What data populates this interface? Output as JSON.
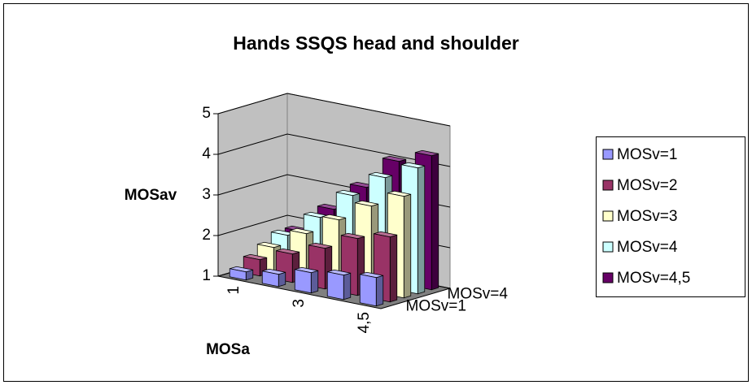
{
  "chart_data": {
    "type": "bar3d",
    "title": "Hands SSQS head and shoulder",
    "y_label": "MOSav",
    "x_label": "MOSa",
    "categories": [
      "1",
      null,
      "3",
      null,
      "4,5"
    ],
    "zlabels": [
      "MOSv=1",
      null,
      null,
      "MOSv=4",
      null
    ],
    "series": [
      {
        "name": "MOSv=1",
        "color": "#9999ff",
        "values": [
          1.2,
          1.3,
          1.5,
          1.6,
          1.7
        ]
      },
      {
        "name": "MOSv=2",
        "color": "#993366",
        "values": [
          1.4,
          1.7,
          2.0,
          2.4,
          2.6
        ]
      },
      {
        "name": "MOSv=3",
        "color": "#ffffcc",
        "values": [
          1.6,
          2.1,
          2.6,
          3.1,
          3.5
        ]
      },
      {
        "name": "MOSv=4",
        "color": "#ccffff",
        "values": [
          1.8,
          2.4,
          3.1,
          3.7,
          4.1
        ]
      },
      {
        "name": "MOSv=4,5",
        "color": "#660066",
        "values": [
          1.8,
          2.5,
          3.2,
          4.0,
          4.3
        ]
      }
    ],
    "ylim": [
      1,
      5
    ],
    "yticks": [
      1,
      2,
      3,
      4,
      5
    ],
    "grid": true,
    "legend": "right"
  }
}
